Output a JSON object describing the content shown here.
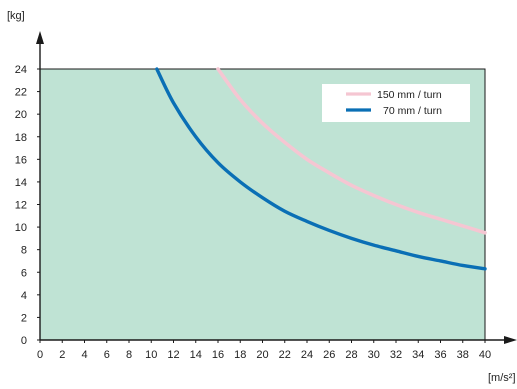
{
  "chart_data": {
    "type": "line",
    "title": "",
    "xlabel": "",
    "ylabel": "",
    "x_unit": "[m/s²]",
    "y_unit": "[kg]",
    "xlim": [
      0,
      40
    ],
    "ylim": [
      0,
      24
    ],
    "x_ticks": [
      0,
      2,
      4,
      6,
      8,
      10,
      12,
      14,
      16,
      18,
      20,
      22,
      24,
      26,
      28,
      30,
      32,
      34,
      36,
      38,
      40
    ],
    "y_ticks": [
      0,
      2,
      4,
      6,
      8,
      10,
      12,
      14,
      16,
      18,
      20,
      22,
      24
    ],
    "grid": false,
    "legend_position": "top-right",
    "plot_background": "#bfe3d4",
    "series": [
      {
        "name": "150 mm / turn",
        "color": "#f5c6d2",
        "x": [
          16,
          18,
          20,
          22,
          24,
          26,
          28,
          30,
          32,
          34,
          36,
          38,
          40
        ],
        "y": [
          24,
          21.3,
          19.2,
          17.5,
          16.0,
          14.8,
          13.7,
          12.8,
          12.0,
          11.3,
          10.7,
          10.1,
          9.5
        ]
      },
      {
        "name": "70 mm / turn",
        "color": "#0a6fb5",
        "x": [
          10.5,
          12,
          14,
          16,
          18,
          20,
          22,
          24,
          26,
          28,
          30,
          32,
          34,
          36,
          38,
          40
        ],
        "y": [
          24,
          21.0,
          18.0,
          15.7,
          14.0,
          12.6,
          11.4,
          10.5,
          9.7,
          9.0,
          8.4,
          7.9,
          7.4,
          7.0,
          6.6,
          6.3
        ]
      }
    ]
  }
}
